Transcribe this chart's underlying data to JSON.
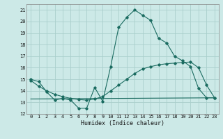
{
  "xlabel": "Humidex (Indice chaleur)",
  "xlim": [
    -0.5,
    23.5
  ],
  "ylim": [
    12,
    21.5
  ],
  "yticks": [
    12,
    13,
    14,
    15,
    16,
    17,
    18,
    19,
    20,
    21
  ],
  "xticks": [
    0,
    1,
    2,
    3,
    4,
    5,
    6,
    7,
    8,
    9,
    10,
    11,
    12,
    13,
    14,
    15,
    16,
    17,
    18,
    19,
    20,
    21,
    22,
    23
  ],
  "bg_color": "#cce9e7",
  "grid_color": "#aacfcc",
  "line_color": "#1a6b60",
  "line1_x": [
    0,
    1,
    2,
    3,
    4,
    5,
    6,
    7,
    8,
    9,
    10,
    11,
    12,
    13,
    14,
    15,
    16,
    17,
    18,
    19,
    20,
    21,
    22,
    23
  ],
  "line1_y": [
    15.0,
    14.8,
    13.9,
    13.2,
    13.35,
    13.2,
    12.5,
    12.5,
    14.3,
    13.1,
    16.1,
    19.5,
    20.35,
    21.0,
    20.55,
    20.1,
    18.55,
    18.15,
    17.0,
    16.6,
    16.1,
    14.2,
    13.4,
    13.4
  ],
  "line2_x": [
    0,
    1,
    2,
    3,
    4,
    5,
    6,
    7,
    8,
    9,
    10,
    11,
    12,
    13,
    14,
    15,
    16,
    17,
    18,
    19,
    20,
    21,
    22,
    23
  ],
  "line2_y": [
    14.9,
    14.4,
    14.0,
    13.7,
    13.5,
    13.35,
    13.25,
    13.2,
    13.3,
    13.5,
    14.0,
    14.5,
    15.0,
    15.5,
    15.9,
    16.1,
    16.25,
    16.35,
    16.4,
    16.45,
    16.5,
    16.0,
    14.5,
    13.4
  ],
  "line3_x": [
    0,
    23
  ],
  "line3_y": [
    13.3,
    13.4
  ]
}
